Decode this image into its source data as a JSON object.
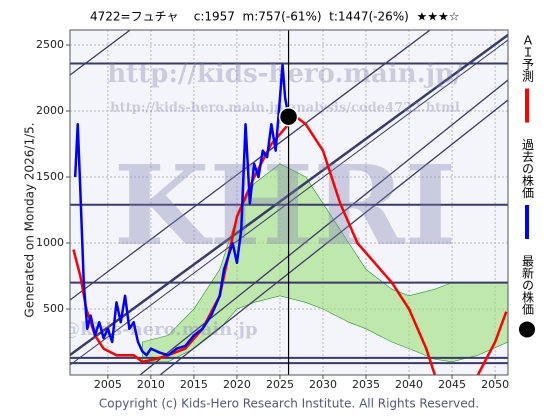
{
  "chart_data": {
    "type": "line",
    "title": "4722=フュチャ    c:1957  m:757(-61%)  t:1447(-26%)  ★★★☆",
    "side_note": "Generated on Monday 2026/1/5.",
    "footer": "Copyright (c) Kids-Hero Research Institute. All Rights Reserved.",
    "watermarks": [
      "http://kids-hero.main.jp/",
      "http://kids-hero.main.jp/analysis/code4722.html",
      "KHRI",
      "info@kids-hero.main.jp"
    ],
    "xlim": [
      2000.6,
      2051.5
    ],
    "ylim": [
      0,
      2614
    ],
    "xticks": [
      2005,
      2010,
      2015,
      2020,
      2025,
      2030,
      2035,
      2040,
      2045,
      2050
    ],
    "yticks": [
      500,
      1000,
      1500,
      2000,
      2500
    ],
    "grid": true,
    "band": {
      "color": "#9be07a",
      "x": [
        2009,
        2012,
        2015,
        2018,
        2020,
        2022,
        2025,
        2028,
        2030,
        2033,
        2035,
        2038,
        2040,
        2043,
        2045,
        2048,
        2051.5
      ],
      "lower": [
        100,
        100,
        200,
        350,
        500,
        550,
        600,
        550,
        500,
        400,
        350,
        250,
        200,
        120,
        100,
        150,
        250
      ],
      "upper": [
        250,
        300,
        500,
        800,
        1200,
        1450,
        1600,
        1500,
        1300,
        1000,
        800,
        650,
        600,
        650,
        700,
        700,
        700
      ]
    },
    "hlines": {
      "color": "#3a3a6a",
      "values": [
        2360,
        1290,
        700,
        130,
        90
      ]
    },
    "series": [
      {
        "name": "ＡＩ予測",
        "color": "#ff0000",
        "style": "line",
        "x": [
          2001,
          2001.8,
          2002.5,
          2003.5,
          2004.5,
          2006,
          2008,
          2009,
          2010.5,
          2012,
          2014,
          2016,
          2018,
          2019,
          2020,
          2022,
          2024,
          2026,
          2027,
          2028,
          2030,
          2032,
          2034,
          2036,
          2038,
          2040,
          2042,
          2043,
          2045,
          2048,
          2050,
          2051.3
        ],
        "values": [
          950,
          750,
          500,
          300,
          200,
          150,
          150,
          100,
          120,
          150,
          200,
          350,
          600,
          900,
          1200,
          1500,
          1750,
          1900,
          1950,
          1900,
          1700,
          1300,
          1000,
          850,
          700,
          500,
          200,
          0,
          null,
          0,
          250,
          480
        ]
      },
      {
        "name": "過去の株価",
        "color": "#0000ff",
        "style": "line",
        "x": [
          2001.2,
          2001.5,
          2001.8,
          2002.2,
          2002.6,
          2003,
          2003.5,
          2004,
          2004.5,
          2005,
          2005.5,
          2006,
          2006.5,
          2007,
          2007.5,
          2008,
          2008.5,
          2009,
          2009.5,
          2010,
          2011,
          2012,
          2013,
          2014,
          2015,
          2016,
          2017,
          2018,
          2018.5,
          2019,
          2019.5,
          2020,
          2020.5,
          2021,
          2021.5,
          2022,
          2022.5,
          2023,
          2023.5,
          2024,
          2024.5,
          2025,
          2025.3,
          2025.6,
          2026
        ],
        "values": [
          1500,
          1900,
          1400,
          700,
          350,
          450,
          300,
          400,
          280,
          350,
          250,
          550,
          400,
          600,
          350,
          400,
          250,
          180,
          150,
          200,
          170,
          150,
          200,
          220,
          300,
          350,
          450,
          600,
          800,
          900,
          1000,
          850,
          1100,
          1900,
          1300,
          1600,
          1500,
          1700,
          1650,
          1900,
          1700,
          2100,
          2350,
          2100,
          1957
        ]
      },
      {
        "name": "最新の株価",
        "color": "#000000",
        "style": "point",
        "x": [
          2026
        ],
        "values": [
          1957
        ]
      }
    ]
  }
}
